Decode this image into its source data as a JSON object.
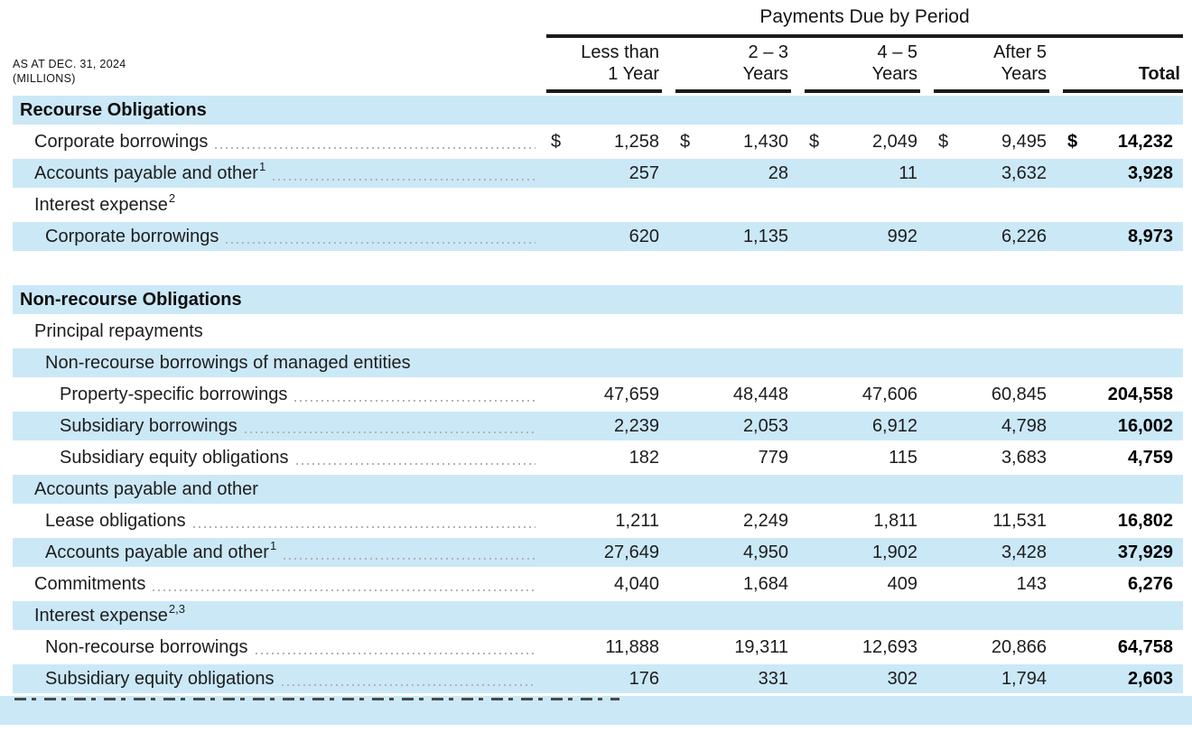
{
  "colors": {
    "row_blue": "#cbe8f7",
    "line_black": "#1b1b1b",
    "text": "#1d1d1d",
    "dots_gray": "#b4b4b4"
  },
  "as_at": {
    "line1": "AS AT DEC. 31, 2024",
    "line2": "(MILLIONS)"
  },
  "header": {
    "title": "Payments Due by Period",
    "columns": [
      {
        "line1": "Less than",
        "line2": "1 Year"
      },
      {
        "line1": "2 – 3",
        "line2": "Years"
      },
      {
        "line1": "4 – 5",
        "line2": "Years"
      },
      {
        "line1": "After 5",
        "line2": "Years"
      },
      {
        "line1": "",
        "line2": "Total"
      }
    ]
  },
  "table": {
    "currency_symbol": "$",
    "rows": [
      {
        "type": "section",
        "label": "Recourse Obligations",
        "blue": true
      },
      {
        "type": "data",
        "label": "Corporate borrowings",
        "sup": "",
        "indent": 1,
        "dots": true,
        "blue": false,
        "dollar": true,
        "values": [
          "1,258",
          "1,430",
          "2,049",
          "9,495",
          "14,232"
        ]
      },
      {
        "type": "data",
        "label": "Accounts payable and other",
        "sup": "1",
        "indent": 1,
        "dots": true,
        "blue": true,
        "dollar": false,
        "values": [
          "257",
          "28",
          "11",
          "3,632",
          "3,928"
        ]
      },
      {
        "type": "data",
        "label": "Interest expense",
        "sup": "2",
        "indent": 1,
        "dots": false,
        "blue": false,
        "dollar": false,
        "values": null
      },
      {
        "type": "data",
        "label": "Corporate borrowings",
        "sup": "",
        "indent": 2,
        "dots": true,
        "blue": true,
        "dollar": false,
        "values": [
          "620",
          "1,135",
          "992",
          "6,226",
          "8,973"
        ]
      },
      {
        "type": "spacer"
      },
      {
        "type": "section",
        "label": "Non-recourse Obligations",
        "blue": true
      },
      {
        "type": "data",
        "label": "Principal repayments",
        "sup": "",
        "indent": 1,
        "dots": false,
        "blue": false,
        "dollar": false,
        "values": null
      },
      {
        "type": "data",
        "label": "Non-recourse borrowings of managed entities",
        "sup": "",
        "indent": 2,
        "dots": false,
        "blue": true,
        "dollar": false,
        "values": null
      },
      {
        "type": "data",
        "label": "Property-specific borrowings",
        "sup": "",
        "indent": 3,
        "dots": true,
        "blue": false,
        "dollar": false,
        "values": [
          "47,659",
          "48,448",
          "47,606",
          "60,845",
          "204,558"
        ]
      },
      {
        "type": "data",
        "label": "Subsidiary borrowings",
        "sup": "",
        "indent": 3,
        "dots": true,
        "blue": true,
        "dollar": false,
        "values": [
          "2,239",
          "2,053",
          "6,912",
          "4,798",
          "16,002"
        ]
      },
      {
        "type": "data",
        "label": "Subsidiary equity obligations",
        "sup": "",
        "indent": 3,
        "dots": true,
        "blue": false,
        "dollar": false,
        "values": [
          "182",
          "779",
          "115",
          "3,683",
          "4,759"
        ]
      },
      {
        "type": "data",
        "label": "Accounts payable and other",
        "sup": "",
        "indent": 1,
        "dots": false,
        "blue": true,
        "dollar": false,
        "values": null
      },
      {
        "type": "data",
        "label": "Lease obligations",
        "sup": "",
        "indent": 2,
        "dots": true,
        "blue": false,
        "dollar": false,
        "values": [
          "1,211",
          "2,249",
          "1,811",
          "11,531",
          "16,802"
        ]
      },
      {
        "type": "data",
        "label": "Accounts payable and other",
        "sup": "1",
        "indent": 2,
        "dots": true,
        "blue": true,
        "dollar": false,
        "values": [
          "27,649",
          "4,950",
          "1,902",
          "3,428",
          "37,929"
        ]
      },
      {
        "type": "data",
        "label": "Commitments",
        "sup": "",
        "indent": 1,
        "dots": true,
        "blue": false,
        "dollar": false,
        "values": [
          "4,040",
          "1,684",
          "409",
          "143",
          "6,276"
        ]
      },
      {
        "type": "data",
        "label": "Interest expense",
        "sup": "2,3",
        "indent": 1,
        "dots": false,
        "blue": true,
        "dollar": false,
        "values": null
      },
      {
        "type": "data",
        "label": "Non-recourse borrowings",
        "sup": "",
        "indent": 2,
        "dots": true,
        "blue": false,
        "dollar": false,
        "values": [
          "11,888",
          "19,311",
          "12,693",
          "20,866",
          "64,758"
        ]
      },
      {
        "type": "data",
        "label": "Subsidiary equity obligations",
        "sup": "",
        "indent": 2,
        "dots": true,
        "blue": true,
        "dollar": false,
        "values": [
          "176",
          "331",
          "302",
          "1,794",
          "2,603"
        ]
      }
    ]
  }
}
